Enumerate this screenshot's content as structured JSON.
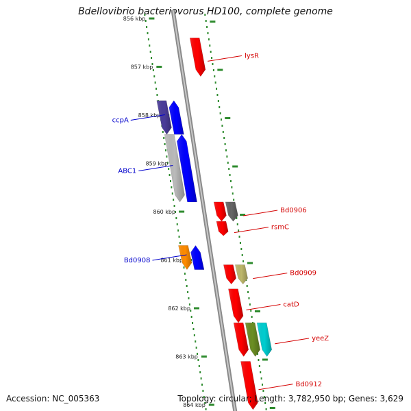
{
  "title": "Bdellovibrio bacteriovorus HD100, complete genome",
  "accession": "Accession: NC_005363",
  "summary": "Topology: circular; Length: 3,782,950 bp; Genes: 3,629",
  "colors": {
    "backbone": "#8a8a8a",
    "ticks": "#2e8b2e",
    "label_red": "#d40000",
    "label_blue": "#0000cc"
  },
  "kbp_marks": [
    "856 kbp",
    "857 kbp",
    "858 kbp",
    "859 kbp",
    "860 kbp",
    "861 kbp",
    "862 kbp",
    "863 kbp",
    "864 kbp"
  ],
  "genes": [
    {
      "id": "lysR",
      "label": "lysR",
      "color": "#ff0000",
      "start_kbp": 856.4,
      "end_kbp": 857.2,
      "strand": "+",
      "side": "right",
      "track": 0,
      "label_color": "red"
    },
    {
      "id": "ccpA-track2",
      "label": "",
      "color": "#4a3c9a",
      "start_kbp": 857.7,
      "end_kbp": 858.4,
      "strand": "+",
      "side": "left",
      "track": 1,
      "label_color": "blue"
    },
    {
      "id": "ccpA",
      "label": "ccpA",
      "color": "#0000ff",
      "start_kbp": 857.7,
      "end_kbp": 858.4,
      "strand": "-",
      "side": "left",
      "track": 0,
      "label_color": "blue"
    },
    {
      "id": "ABC1-track2",
      "label": "",
      "color": "#bbbbbb",
      "start_kbp": 858.4,
      "end_kbp": 859.8,
      "strand": "+",
      "side": "left",
      "track": 1,
      "label_color": "blue"
    },
    {
      "id": "ABC1",
      "label": "ABC1",
      "color": "#0000ff",
      "start_kbp": 858.4,
      "end_kbp": 859.8,
      "strand": "-",
      "side": "left",
      "track": 0,
      "label_color": "blue"
    },
    {
      "id": "Bd0906-a",
      "label": "",
      "color": "#ff0000",
      "start_kbp": 859.8,
      "end_kbp": 860.2,
      "strand": "+",
      "side": "right",
      "track": 0,
      "label_color": "red"
    },
    {
      "id": "Bd0906",
      "label": "Bd0906",
      "color": "#666666",
      "start_kbp": 859.8,
      "end_kbp": 860.2,
      "strand": "+",
      "side": "right",
      "track": 1,
      "label_color": "red"
    },
    {
      "id": "rsmC",
      "label": "rsmC",
      "color": "#ff0000",
      "start_kbp": 860.2,
      "end_kbp": 860.5,
      "strand": "+",
      "side": "right",
      "track": 0,
      "label_color": "red"
    },
    {
      "id": "Bd0908-track2",
      "label": "",
      "color": "#ff8c00",
      "start_kbp": 860.7,
      "end_kbp": 861.2,
      "strand": "+",
      "side": "left",
      "track": 1,
      "label_color": "blue"
    },
    {
      "id": "Bd0908",
      "label": "Bd0908",
      "color": "#0000ff",
      "start_kbp": 860.7,
      "end_kbp": 861.2,
      "strand": "-",
      "side": "left",
      "track": 0,
      "label_color": "blue"
    },
    {
      "id": "Bd0909-a",
      "label": "",
      "color": "#ff0000",
      "start_kbp": 861.1,
      "end_kbp": 861.5,
      "strand": "+",
      "side": "right",
      "track": 0,
      "label_color": "red"
    },
    {
      "id": "Bd0909",
      "label": "Bd0909",
      "color": "#bdb76b",
      "start_kbp": 861.1,
      "end_kbp": 861.5,
      "strand": "+",
      "side": "right",
      "track": 1,
      "label_color": "red"
    },
    {
      "id": "catD",
      "label": "catD",
      "color": "#ff0000",
      "start_kbp": 861.6,
      "end_kbp": 862.3,
      "strand": "+",
      "side": "right",
      "track": 0,
      "label_color": "red"
    },
    {
      "id": "yeeZ-a",
      "label": "",
      "color": "#ff0000",
      "start_kbp": 862.3,
      "end_kbp": 863.0,
      "strand": "+",
      "side": "right",
      "track": 0,
      "label_color": "red"
    },
    {
      "id": "yeeZ-b",
      "label": "",
      "color": "#6b8e23",
      "start_kbp": 862.3,
      "end_kbp": 863.0,
      "strand": "+",
      "side": "right",
      "track": 1,
      "label_color": "red"
    },
    {
      "id": "yeeZ",
      "label": "yeeZ",
      "color": "#00ced1",
      "start_kbp": 862.3,
      "end_kbp": 863.0,
      "strand": "+",
      "side": "right",
      "track": 2,
      "label_color": "red"
    },
    {
      "id": "Bd0912",
      "label": "Bd0912",
      "color": "#ff0000",
      "start_kbp": 863.1,
      "end_kbp": 864.1,
      "strand": "+",
      "side": "right",
      "track": 0,
      "label_color": "red"
    }
  ]
}
